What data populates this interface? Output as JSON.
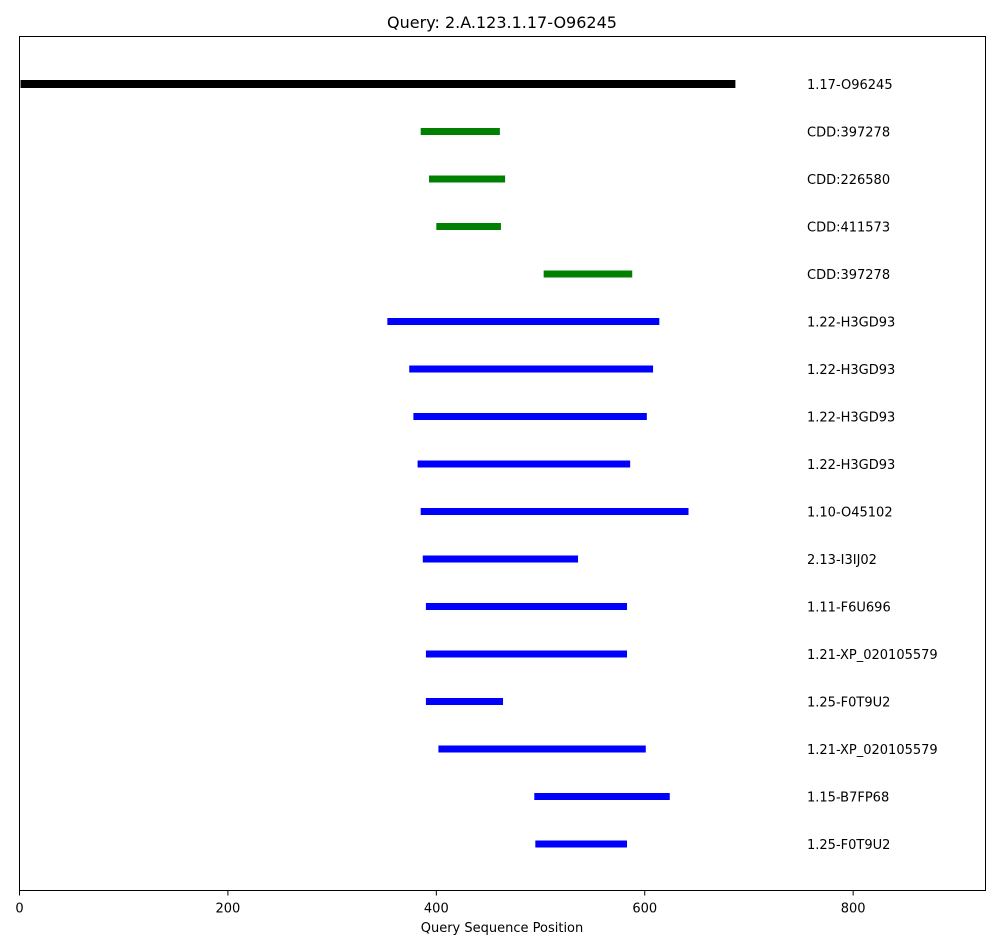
{
  "chart_data": {
    "type": "segment",
    "title": "Query: 2.A.123.1.17-O96245",
    "xlabel": "Query Sequence Position",
    "xlim": [
      0,
      927
    ],
    "xticks": [
      0,
      200,
      400,
      600,
      800
    ],
    "grid": false,
    "colors": {
      "query": "#000000",
      "cdd": "#008000",
      "hit": "#0000ff"
    },
    "segments": [
      {
        "label": "1.17-O96245",
        "start": 1,
        "end": 687,
        "kind": "query"
      },
      {
        "label": "CDD:397278",
        "start": 385,
        "end": 461,
        "kind": "cdd"
      },
      {
        "label": "CDD:226580",
        "start": 393,
        "end": 466,
        "kind": "cdd"
      },
      {
        "label": "CDD:411573",
        "start": 400,
        "end": 462,
        "kind": "cdd"
      },
      {
        "label": "CDD:397278",
        "start": 503,
        "end": 588,
        "kind": "cdd"
      },
      {
        "label": "1.22-H3GD93",
        "start": 353,
        "end": 614,
        "kind": "hit"
      },
      {
        "label": "1.22-H3GD93",
        "start": 374,
        "end": 608,
        "kind": "hit"
      },
      {
        "label": "1.22-H3GD93",
        "start": 378,
        "end": 602,
        "kind": "hit"
      },
      {
        "label": "1.22-H3GD93",
        "start": 382,
        "end": 586,
        "kind": "hit"
      },
      {
        "label": "1.10-O45102",
        "start": 385,
        "end": 642,
        "kind": "hit"
      },
      {
        "label": "2.13-I3IJ02",
        "start": 387,
        "end": 536,
        "kind": "hit"
      },
      {
        "label": "1.11-F6U696",
        "start": 390,
        "end": 583,
        "kind": "hit"
      },
      {
        "label": "1.21-XP_020105579",
        "start": 390,
        "end": 583,
        "kind": "hit"
      },
      {
        "label": "1.25-F0T9U2",
        "start": 390,
        "end": 464,
        "kind": "hit"
      },
      {
        "label": "1.21-XP_020105579",
        "start": 402,
        "end": 601,
        "kind": "hit"
      },
      {
        "label": "1.15-B7FP68",
        "start": 494,
        "end": 624,
        "kind": "hit"
      },
      {
        "label": "1.25-F0T9U2",
        "start": 495,
        "end": 583,
        "kind": "hit"
      }
    ]
  }
}
